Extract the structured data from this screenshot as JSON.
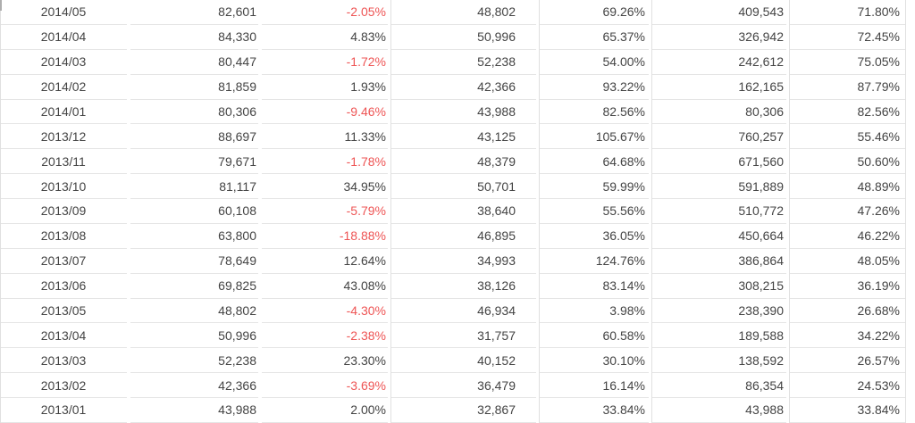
{
  "colors": {
    "text": "#444444",
    "negative": "#ee5555",
    "border": "#e5e5e5",
    "divider": "#e0e0e0",
    "background": "#ffffff"
  },
  "table": {
    "column_names": [
      "month",
      "value-1",
      "change-pct-1",
      "value-2",
      "pct-2",
      "value-3",
      "pct-3"
    ],
    "rows": [
      [
        "2014/05",
        "82,601",
        "-2.05%",
        "48,802",
        "69.26%",
        "409,543",
        "71.80%"
      ],
      [
        "2014/04",
        "84,330",
        "4.83%",
        "50,996",
        "65.37%",
        "326,942",
        "72.45%"
      ],
      [
        "2014/03",
        "80,447",
        "-1.72%",
        "52,238",
        "54.00%",
        "242,612",
        "75.05%"
      ],
      [
        "2014/02",
        "81,859",
        "1.93%",
        "42,366",
        "93.22%",
        "162,165",
        "87.79%"
      ],
      [
        "2014/01",
        "80,306",
        "-9.46%",
        "43,988",
        "82.56%",
        "80,306",
        "82.56%"
      ],
      [
        "2013/12",
        "88,697",
        "11.33%",
        "43,125",
        "105.67%",
        "760,257",
        "55.46%"
      ],
      [
        "2013/11",
        "79,671",
        "-1.78%",
        "48,379",
        "64.68%",
        "671,560",
        "50.60%"
      ],
      [
        "2013/10",
        "81,117",
        "34.95%",
        "50,701",
        "59.99%",
        "591,889",
        "48.89%"
      ],
      [
        "2013/09",
        "60,108",
        "-5.79%",
        "38,640",
        "55.56%",
        "510,772",
        "47.26%"
      ],
      [
        "2013/08",
        "63,800",
        "-18.88%",
        "46,895",
        "36.05%",
        "450,664",
        "46.22%"
      ],
      [
        "2013/07",
        "78,649",
        "12.64%",
        "34,993",
        "124.76%",
        "386,864",
        "48.05%"
      ],
      [
        "2013/06",
        "69,825",
        "43.08%",
        "38,126",
        "83.14%",
        "308,215",
        "36.19%"
      ],
      [
        "2013/05",
        "48,802",
        "-4.30%",
        "46,934",
        "3.98%",
        "238,390",
        "26.68%"
      ],
      [
        "2013/04",
        "50,996",
        "-2.38%",
        "31,757",
        "60.58%",
        "189,588",
        "34.22%"
      ],
      [
        "2013/03",
        "52,238",
        "23.30%",
        "40,152",
        "30.10%",
        "138,592",
        "26.57%"
      ],
      [
        "2013/02",
        "42,366",
        "-3.69%",
        "36,479",
        "16.14%",
        "86,354",
        "24.53%"
      ],
      [
        "2013/01",
        "43,988",
        "2.00%",
        "32,867",
        "33.84%",
        "43,988",
        "33.84%"
      ]
    ]
  }
}
